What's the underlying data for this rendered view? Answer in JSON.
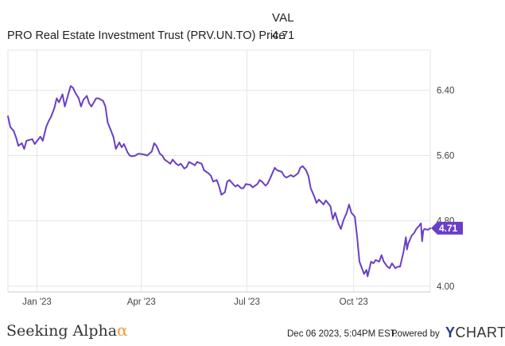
{
  "legend": {
    "header": "VAL",
    "series_label": "PRO Real Estate Investment Trust (PRV.UN.TO) Price",
    "series_value": "4.71"
  },
  "footer": {
    "brand": "Seeking Alpha",
    "brand_mark": "α",
    "date": "Dec 06 2023, 5:04PM EST.",
    "powered": "Powered by",
    "logo_mark": "Y",
    "logo_text": "CHARTS"
  },
  "colors": {
    "line": "#6a3fc6",
    "grid": "#e6e6e6",
    "axis": "#cccccc",
    "badge": "#6a3fc6",
    "brand_alpha": "#f29c38",
    "ycharts_y": "#1f3b8a"
  },
  "chart_data": {
    "type": "line",
    "title": "",
    "xlabel": "",
    "ylabel": "",
    "x_start": "2022-12-07",
    "x_end": "2023-12-06",
    "x_ticks": [
      {
        "date": "2023-01-01",
        "label": "Jan '23"
      },
      {
        "date": "2023-04-01",
        "label": "Apr '23"
      },
      {
        "date": "2023-07-01",
        "label": "Jul '23"
      },
      {
        "date": "2023-10-01",
        "label": "Oct '23"
      }
    ],
    "y_ticks": [
      {
        "value": 4.0,
        "label": "4.00"
      },
      {
        "value": 4.8,
        "label": "4.80"
      },
      {
        "value": 5.6,
        "label": "5.60"
      },
      {
        "value": 6.4,
        "label": "6.40"
      }
    ],
    "ylim": [
      3.93,
      6.89
    ],
    "grid": true,
    "last_value": 4.71,
    "last_value_label": "4.71",
    "series": [
      {
        "name": "PRO Real Estate Investment Trust (PRV.UN.TO) Price",
        "points": [
          [
            "2022-12-07",
            6.08
          ],
          [
            "2022-12-09",
            5.95
          ],
          [
            "2022-12-12",
            5.9
          ],
          [
            "2022-12-14",
            5.82
          ],
          [
            "2022-12-16",
            5.72
          ],
          [
            "2022-12-19",
            5.75
          ],
          [
            "2022-12-21",
            5.68
          ],
          [
            "2022-12-23",
            5.78
          ],
          [
            "2022-12-28",
            5.8
          ],
          [
            "2022-12-30",
            5.74
          ],
          [
            "2023-01-04",
            5.83
          ],
          [
            "2023-01-06",
            5.78
          ],
          [
            "2023-01-09",
            5.95
          ],
          [
            "2023-01-11",
            6.02
          ],
          [
            "2023-01-13",
            6.07
          ],
          [
            "2023-01-16",
            6.18
          ],
          [
            "2023-01-18",
            6.3
          ],
          [
            "2023-01-20",
            6.25
          ],
          [
            "2023-01-23",
            6.35
          ],
          [
            "2023-01-25",
            6.2
          ],
          [
            "2023-01-27",
            6.3
          ],
          [
            "2023-01-30",
            6.45
          ],
          [
            "2023-02-01",
            6.43
          ],
          [
            "2023-02-03",
            6.37
          ],
          [
            "2023-02-06",
            6.3
          ],
          [
            "2023-02-08",
            6.2
          ],
          [
            "2023-02-10",
            6.28
          ],
          [
            "2023-02-13",
            6.33
          ],
          [
            "2023-02-15",
            6.24
          ],
          [
            "2023-02-17",
            6.2
          ],
          [
            "2023-02-21",
            6.3
          ],
          [
            "2023-02-23",
            6.3
          ],
          [
            "2023-02-27",
            6.27
          ],
          [
            "2023-03-01",
            6.2
          ],
          [
            "2023-03-03",
            6.0
          ],
          [
            "2023-03-06",
            5.9
          ],
          [
            "2023-03-08",
            5.82
          ],
          [
            "2023-03-10",
            5.68
          ],
          [
            "2023-03-13",
            5.76
          ],
          [
            "2023-03-15",
            5.7
          ],
          [
            "2023-03-17",
            5.74
          ],
          [
            "2023-03-20",
            5.64
          ],
          [
            "2023-03-22",
            5.6
          ],
          [
            "2023-03-24",
            5.59
          ],
          [
            "2023-03-27",
            5.6
          ],
          [
            "2023-03-29",
            5.62
          ],
          [
            "2023-03-31",
            5.62
          ],
          [
            "2023-04-04",
            5.61
          ],
          [
            "2023-04-06",
            5.6
          ],
          [
            "2023-04-10",
            5.65
          ],
          [
            "2023-04-12",
            5.75
          ],
          [
            "2023-04-14",
            5.72
          ],
          [
            "2023-04-17",
            5.62
          ],
          [
            "2023-04-19",
            5.6
          ],
          [
            "2023-04-21",
            5.55
          ],
          [
            "2023-04-24",
            5.52
          ],
          [
            "2023-04-26",
            5.5
          ],
          [
            "2023-04-28",
            5.55
          ],
          [
            "2023-05-01",
            5.5
          ],
          [
            "2023-05-03",
            5.48
          ],
          [
            "2023-05-05",
            5.5
          ],
          [
            "2023-05-08",
            5.44
          ],
          [
            "2023-05-10",
            5.46
          ],
          [
            "2023-05-12",
            5.52
          ],
          [
            "2023-05-15",
            5.5
          ],
          [
            "2023-05-17",
            5.48
          ],
          [
            "2023-05-19",
            5.52
          ],
          [
            "2023-05-23",
            5.5
          ],
          [
            "2023-05-25",
            5.42
          ],
          [
            "2023-05-29",
            5.38
          ],
          [
            "2023-05-31",
            5.35
          ],
          [
            "2023-06-02",
            5.28
          ],
          [
            "2023-06-05",
            5.3
          ],
          [
            "2023-06-07",
            5.22
          ],
          [
            "2023-06-09",
            5.12
          ],
          [
            "2023-06-12",
            5.15
          ],
          [
            "2023-06-14",
            5.28
          ],
          [
            "2023-06-16",
            5.3
          ],
          [
            "2023-06-19",
            5.25
          ],
          [
            "2023-06-21",
            5.22
          ],
          [
            "2023-06-23",
            5.24
          ],
          [
            "2023-06-26",
            5.2
          ],
          [
            "2023-06-28",
            5.2
          ],
          [
            "2023-06-30",
            5.25
          ],
          [
            "2023-07-04",
            5.24
          ],
          [
            "2023-07-06",
            5.21
          ],
          [
            "2023-07-10",
            5.25
          ],
          [
            "2023-07-12",
            5.3
          ],
          [
            "2023-07-14",
            5.28
          ],
          [
            "2023-07-17",
            5.23
          ],
          [
            "2023-07-19",
            5.26
          ],
          [
            "2023-07-21",
            5.32
          ],
          [
            "2023-07-25",
            5.45
          ],
          [
            "2023-07-27",
            5.42
          ],
          [
            "2023-07-31",
            5.4
          ],
          [
            "2023-08-02",
            5.35
          ],
          [
            "2023-08-04",
            5.33
          ],
          [
            "2023-08-08",
            5.36
          ],
          [
            "2023-08-10",
            5.34
          ],
          [
            "2023-08-14",
            5.38
          ],
          [
            "2023-08-16",
            5.45
          ],
          [
            "2023-08-18",
            5.47
          ],
          [
            "2023-08-21",
            5.42
          ],
          [
            "2023-08-23",
            5.35
          ],
          [
            "2023-08-25",
            5.2
          ],
          [
            "2023-08-28",
            5.1
          ],
          [
            "2023-08-30",
            5.02
          ],
          [
            "2023-09-01",
            5.06
          ],
          [
            "2023-09-05",
            5.0
          ],
          [
            "2023-09-07",
            5.05
          ],
          [
            "2023-09-11",
            4.98
          ],
          [
            "2023-09-13",
            4.82
          ],
          [
            "2023-09-15",
            4.9
          ],
          [
            "2023-09-18",
            4.76
          ],
          [
            "2023-09-20",
            4.7
          ],
          [
            "2023-09-22",
            4.8
          ],
          [
            "2023-09-25",
            4.9
          ],
          [
            "2023-09-27",
            5.0
          ],
          [
            "2023-09-29",
            4.9
          ],
          [
            "2023-10-02",
            4.85
          ],
          [
            "2023-10-04",
            4.6
          ],
          [
            "2023-10-06",
            4.3
          ],
          [
            "2023-10-10",
            4.15
          ],
          [
            "2023-10-12",
            4.2
          ],
          [
            "2023-10-13",
            4.12
          ],
          [
            "2023-10-16",
            4.3
          ],
          [
            "2023-10-18",
            4.28
          ],
          [
            "2023-10-20",
            4.32
          ],
          [
            "2023-10-23",
            4.3
          ],
          [
            "2023-10-25",
            4.38
          ],
          [
            "2023-10-27",
            4.3
          ],
          [
            "2023-10-30",
            4.24
          ],
          [
            "2023-11-01",
            4.22
          ],
          [
            "2023-11-03",
            4.28
          ],
          [
            "2023-11-06",
            4.22
          ],
          [
            "2023-11-08",
            4.24
          ],
          [
            "2023-11-10",
            4.24
          ],
          [
            "2023-11-13",
            4.42
          ],
          [
            "2023-11-15",
            4.6
          ],
          [
            "2023-11-16",
            4.45
          ],
          [
            "2023-11-17",
            4.52
          ],
          [
            "2023-11-20",
            4.62
          ],
          [
            "2023-11-22",
            4.65
          ],
          [
            "2023-11-24",
            4.7
          ],
          [
            "2023-11-27",
            4.75
          ],
          [
            "2023-11-28",
            4.77
          ],
          [
            "2023-11-29",
            4.55
          ],
          [
            "2023-11-30",
            4.68
          ],
          [
            "2023-12-01",
            4.7
          ],
          [
            "2023-12-04",
            4.69
          ],
          [
            "2023-12-06",
            4.71
          ]
        ]
      }
    ]
  }
}
